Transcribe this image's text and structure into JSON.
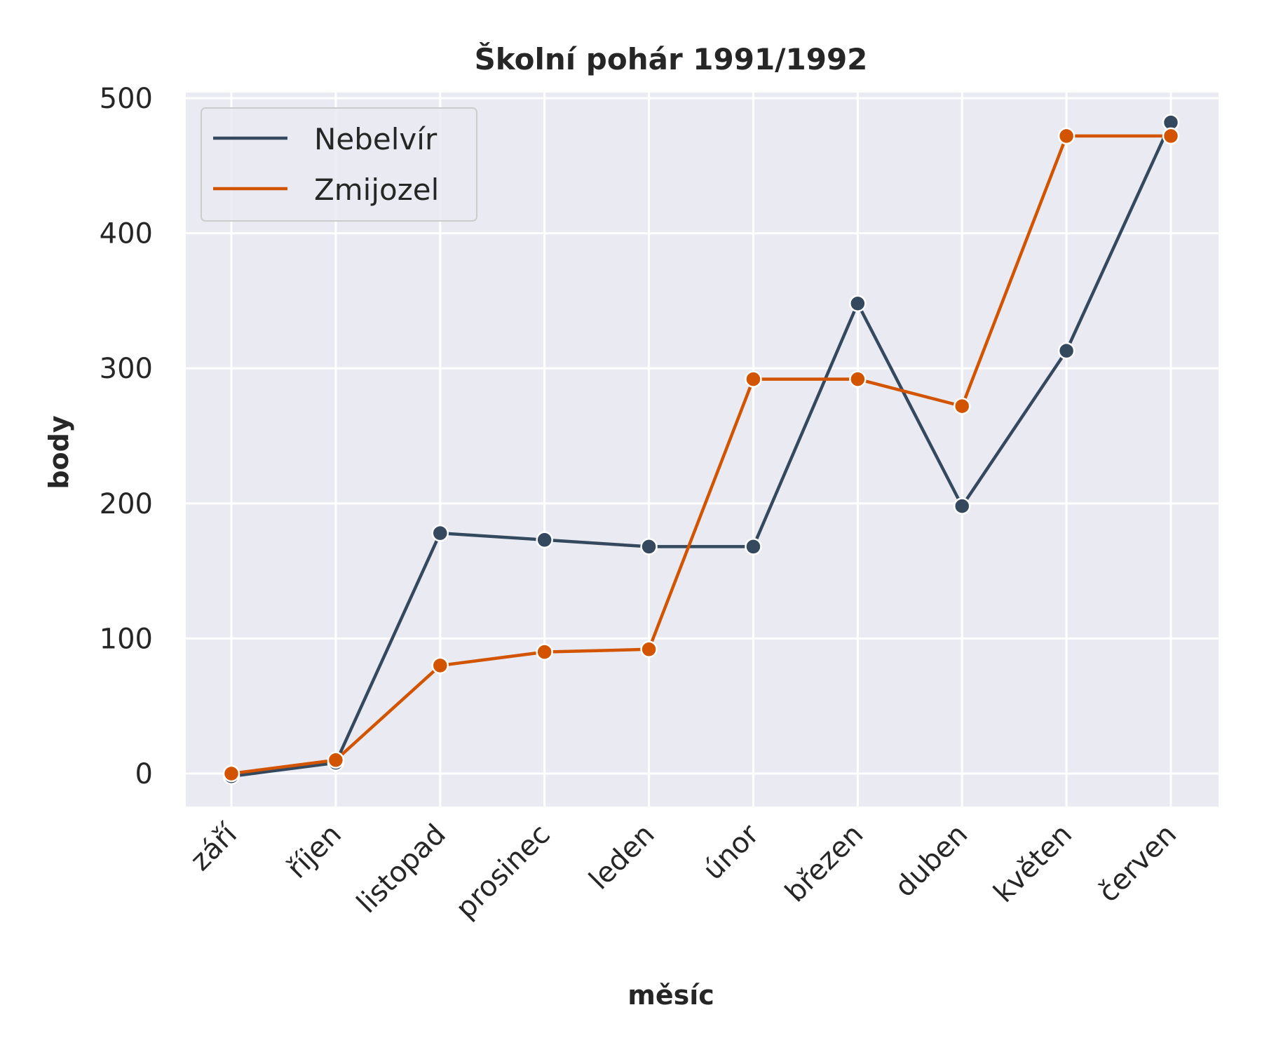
{
  "chart_data": {
    "type": "line",
    "title": "Školní pohár 1991/1992",
    "xlabel": "měsíc",
    "ylabel": "body",
    "categories": [
      "září",
      "říjen",
      "listopad",
      "prosinec",
      "leden",
      "únor",
      "březen",
      "duben",
      "květen",
      "červen"
    ],
    "ylim": [
      -25,
      505
    ],
    "yticks": [
      0,
      100,
      200,
      300,
      400,
      500
    ],
    "grid": true,
    "legend_position": "top-left",
    "series": [
      {
        "name": "Nebelvír",
        "color": "#34495e",
        "values": [
          -2,
          8,
          178,
          173,
          168,
          168,
          348,
          198,
          313,
          482
        ]
      },
      {
        "name": "Zmijozel",
        "color": "#d35400",
        "values": [
          0,
          10,
          80,
          90,
          92,
          292,
          292,
          272,
          472,
          472
        ]
      }
    ],
    "plot_background": "#eaeaf2",
    "grid_color": "#ffffff"
  }
}
